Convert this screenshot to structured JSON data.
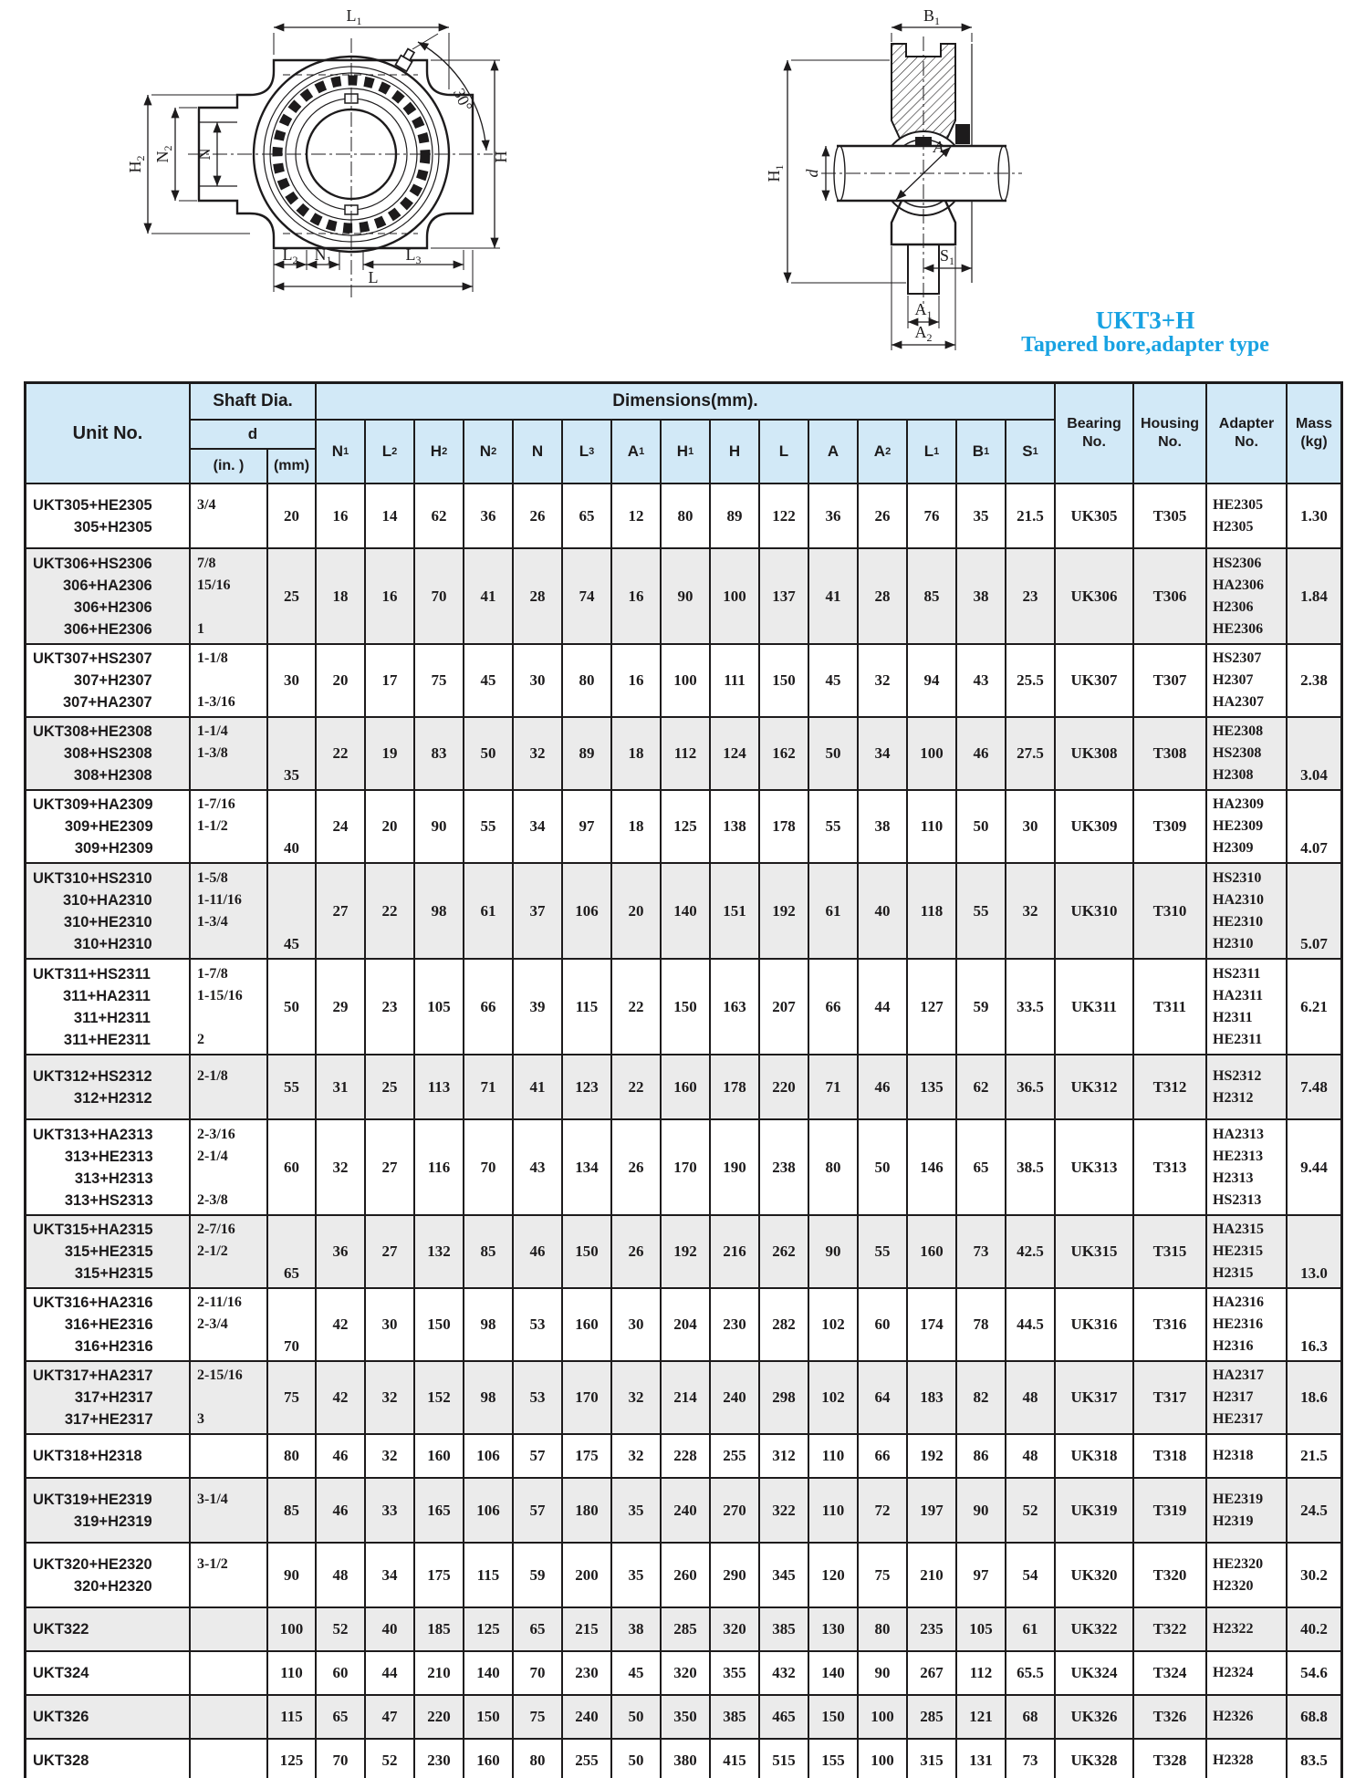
{
  "title": {
    "model": "UKT3+H",
    "subtitle": "Tapered bore,adapter type"
  },
  "colors": {
    "accent_cyan": "#18a2e2",
    "header_bg": "#d2e9f7",
    "row_alt_bg": "#ebebeb",
    "border": "#1d1b1c"
  },
  "diagrams": {
    "left": {
      "labels": [
        {
          "t": "L",
          "s": "1"
        },
        {
          "t": "H",
          "s": "2"
        },
        {
          "t": "N",
          "s": "2"
        },
        {
          "t": "N",
          "s": ""
        },
        {
          "t": "H",
          "s": ""
        },
        {
          "t": "30°",
          "s": ""
        },
        {
          "t": "L",
          "s": "2"
        },
        {
          "t": "N",
          "s": "1"
        },
        {
          "t": "L",
          "s": "3"
        },
        {
          "t": "L",
          "s": ""
        }
      ]
    },
    "right": {
      "labels": [
        {
          "t": "B",
          "s": "1"
        },
        {
          "t": "H",
          "s": "1"
        },
        {
          "t": "d",
          "s": ""
        },
        {
          "t": "A",
          "s": ""
        },
        {
          "t": "S",
          "s": "1"
        },
        {
          "t": "A",
          "s": "1"
        },
        {
          "t": "A",
          "s": "2"
        }
      ]
    }
  },
  "table": {
    "header": {
      "unit_no": "Unit No.",
      "shaft_dia": "Shaft Dia.",
      "d": "d",
      "in_unit": "(in. )",
      "mm_unit": "(mm)",
      "dimensions": "Dimensions(mm).",
      "dim_cols": [
        {
          "t": "N",
          "s": "1"
        },
        {
          "t": "L",
          "s": "2"
        },
        {
          "t": "H",
          "s": "2"
        },
        {
          "t": "N",
          "s": "2"
        },
        {
          "t": "N",
          "s": ""
        },
        {
          "t": "L",
          "s": "3"
        },
        {
          "t": "A",
          "s": "1"
        },
        {
          "t": "H",
          "s": "1"
        },
        {
          "t": "H",
          "s": ""
        },
        {
          "t": "L",
          "s": ""
        },
        {
          "t": "A",
          "s": ""
        },
        {
          "t": "A",
          "s": "2"
        },
        {
          "t": "L",
          "s": "1"
        },
        {
          "t": "B",
          "s": "1"
        },
        {
          "t": "S",
          "s": "1"
        }
      ],
      "bearing": "Bearing",
      "housing": "Housing",
      "adapter": "Adapter",
      "no_label": "No.",
      "mass": "Mass",
      "kg": "(kg)"
    },
    "rows": [
      {
        "unit": [
          "UKT305+HE2305",
          "305+H2305"
        ],
        "in": [
          "3/4",
          ""
        ],
        "mm": "20",
        "dims": [
          "16",
          "14",
          "62",
          "36",
          "26",
          "65",
          "12",
          "80",
          "89",
          "122",
          "36",
          "26",
          "76",
          "35",
          "21.5"
        ],
        "bearing": "UK305",
        "housing": "T305",
        "adapter": [
          "HE2305",
          "H2305"
        ],
        "mass": "1.30"
      },
      {
        "unit": [
          "UKT306+HS2306",
          "306+HA2306",
          "306+H2306",
          "306+HE2306"
        ],
        "in": [
          "7/8",
          "15/16",
          "",
          "1"
        ],
        "mm": "25",
        "dims": [
          "18",
          "16",
          "70",
          "41",
          "28",
          "74",
          "16",
          "90",
          "100",
          "137",
          "41",
          "28",
          "85",
          "38",
          "23"
        ],
        "bearing": "UK306",
        "housing": "T306",
        "adapter": [
          "HS2306",
          "HA2306",
          "H2306",
          "HE2306"
        ],
        "mass": "1.84"
      },
      {
        "unit": [
          "UKT307+HS2307",
          "307+H2307",
          "307+HA2307"
        ],
        "in": [
          "1-1/8",
          "",
          "1-3/16"
        ],
        "mm": "30",
        "dims": [
          "20",
          "17",
          "75",
          "45",
          "30",
          "80",
          "16",
          "100",
          "111",
          "150",
          "45",
          "32",
          "94",
          "43",
          "25.5"
        ],
        "bearing": "UK307",
        "housing": "T307",
        "adapter": [
          "HS2307",
          "H2307",
          "HA2307"
        ],
        "mass": "2.38"
      },
      {
        "unit": [
          "UKT308+HE2308",
          "308+HS2308",
          "308+H2308"
        ],
        "in": [
          "1-1/4",
          "1-3/8",
          ""
        ],
        "mm": "35",
        "va": "b",
        "dims": [
          "22",
          "19",
          "83",
          "50",
          "32",
          "89",
          "18",
          "112",
          "124",
          "162",
          "50",
          "34",
          "100",
          "46",
          "27.5"
        ],
        "bearing": "UK308",
        "housing": "T308",
        "adapter": [
          "HE2308",
          "HS2308",
          "H2308"
        ],
        "mass": "3.04"
      },
      {
        "unit": [
          "UKT309+HA2309",
          "309+HE2309",
          "309+H2309"
        ],
        "in": [
          "1-7/16",
          "1-1/2",
          ""
        ],
        "mm": "40",
        "va": "b",
        "dims": [
          "24",
          "20",
          "90",
          "55",
          "34",
          "97",
          "18",
          "125",
          "138",
          "178",
          "55",
          "38",
          "110",
          "50",
          "30"
        ],
        "bearing": "UK309",
        "housing": "T309",
        "adapter": [
          "HA2309",
          "HE2309",
          "H2309"
        ],
        "mass": "4.07"
      },
      {
        "unit": [
          "UKT310+HS2310",
          "310+HA2310",
          "310+HE2310",
          "310+H2310"
        ],
        "in": [
          "1-5/8",
          "1-11/16",
          "1-3/4",
          ""
        ],
        "mm": "45",
        "va": "b",
        "dims": [
          "27",
          "22",
          "98",
          "61",
          "37",
          "106",
          "20",
          "140",
          "151",
          "192",
          "61",
          "40",
          "118",
          "55",
          "32"
        ],
        "bearing": "UK310",
        "housing": "T310",
        "adapter": [
          "HS2310",
          "HA2310",
          "HE2310",
          "H2310"
        ],
        "mass": "5.07"
      },
      {
        "unit": [
          "UKT311+HS2311",
          "311+HA2311",
          "311+H2311",
          "311+HE2311"
        ],
        "in": [
          "1-7/8",
          "1-15/16",
          "",
          "2"
        ],
        "mm": "50",
        "dims": [
          "29",
          "23",
          "105",
          "66",
          "39",
          "115",
          "22",
          "150",
          "163",
          "207",
          "66",
          "44",
          "127",
          "59",
          "33.5"
        ],
        "bearing": "UK311",
        "housing": "T311",
        "adapter": [
          "HS2311",
          "HA2311",
          "H2311",
          "HE2311"
        ],
        "mass": "6.21"
      },
      {
        "unit": [
          "UKT312+HS2312",
          "312+H2312"
        ],
        "in": [
          "2-1/8",
          ""
        ],
        "mm": "55",
        "dims": [
          "31",
          "25",
          "113",
          "71",
          "41",
          "123",
          "22",
          "160",
          "178",
          "220",
          "71",
          "46",
          "135",
          "62",
          "36.5"
        ],
        "bearing": "UK312",
        "housing": "T312",
        "adapter": [
          "HS2312",
          "H2312"
        ],
        "mass": "7.48"
      },
      {
        "unit": [
          "UKT313+HA2313",
          "313+HE2313",
          "313+H2313",
          "313+HS2313"
        ],
        "in": [
          "2-3/16",
          "2-1/4",
          "",
          "2-3/8"
        ],
        "mm": "60",
        "dims": [
          "32",
          "27",
          "116",
          "70",
          "43",
          "134",
          "26",
          "170",
          "190",
          "238",
          "80",
          "50",
          "146",
          "65",
          "38.5"
        ],
        "bearing": "UK313",
        "housing": "T313",
        "adapter": [
          "HA2313",
          "HE2313",
          "H2313",
          "HS2313"
        ],
        "mass": "9.44"
      },
      {
        "unit": [
          "UKT315+HA2315",
          "315+HE2315",
          "315+H2315"
        ],
        "in": [
          "2-7/16",
          "2-1/2",
          ""
        ],
        "mm": "65",
        "va": "b",
        "dims": [
          "36",
          "27",
          "132",
          "85",
          "46",
          "150",
          "26",
          "192",
          "216",
          "262",
          "90",
          "55",
          "160",
          "73",
          "42.5"
        ],
        "bearing": "UK315",
        "housing": "T315",
        "adapter": [
          "HA2315",
          "HE2315",
          "H2315"
        ],
        "mass": "13.0"
      },
      {
        "unit": [
          "UKT316+HA2316",
          "316+HE2316",
          "316+H2316"
        ],
        "in": [
          "2-11/16",
          "2-3/4",
          ""
        ],
        "mm": "70",
        "va": "b",
        "dims": [
          "42",
          "30",
          "150",
          "98",
          "53",
          "160",
          "30",
          "204",
          "230",
          "282",
          "102",
          "60",
          "174",
          "78",
          "44.5"
        ],
        "bearing": "UK316",
        "housing": "T316",
        "adapter": [
          "HA2316",
          "HE2316",
          "H2316"
        ],
        "mass": "16.3"
      },
      {
        "unit": [
          "UKT317+HA2317",
          "317+H2317",
          "317+HE2317"
        ],
        "in": [
          "2-15/16",
          "",
          "3"
        ],
        "mm": "75",
        "dims": [
          "42",
          "32",
          "152",
          "98",
          "53",
          "170",
          "32",
          "214",
          "240",
          "298",
          "102",
          "64",
          "183",
          "82",
          "48"
        ],
        "bearing": "UK317",
        "housing": "T317",
        "adapter": [
          "HA2317",
          "H2317",
          "HE2317"
        ],
        "mass": "18.6"
      },
      {
        "unit": [
          "UKT318+H2318"
        ],
        "in": [],
        "mm": "80",
        "dims": [
          "46",
          "32",
          "160",
          "106",
          "57",
          "175",
          "32",
          "228",
          "255",
          "312",
          "110",
          "66",
          "192",
          "86",
          "48"
        ],
        "bearing": "UK318",
        "housing": "T318",
        "adapter": [
          "H2318"
        ],
        "mass": "21.5"
      },
      {
        "unit": [
          "UKT319+HE2319",
          "319+H2319"
        ],
        "in": [
          "3-1/4",
          ""
        ],
        "mm": "85",
        "dims": [
          "46",
          "33",
          "165",
          "106",
          "57",
          "180",
          "35",
          "240",
          "270",
          "322",
          "110",
          "72",
          "197",
          "90",
          "52"
        ],
        "bearing": "UK319",
        "housing": "T319",
        "adapter": [
          "HE2319",
          "H2319"
        ],
        "mass": "24.5"
      },
      {
        "unit": [
          "UKT320+HE2320",
          "320+H2320"
        ],
        "in": [
          "3-1/2",
          ""
        ],
        "mm": "90",
        "dims": [
          "48",
          "34",
          "175",
          "115",
          "59",
          "200",
          "35",
          "260",
          "290",
          "345",
          "120",
          "75",
          "210",
          "97",
          "54"
        ],
        "bearing": "UK320",
        "housing": "T320",
        "adapter": [
          "HE2320",
          "H2320"
        ],
        "mass": "30.2"
      },
      {
        "unit": [
          "UKT322"
        ],
        "in": [],
        "mm": "100",
        "dims": [
          "52",
          "40",
          "185",
          "125",
          "65",
          "215",
          "38",
          "285",
          "320",
          "385",
          "130",
          "80",
          "235",
          "105",
          "61"
        ],
        "bearing": "UK322",
        "housing": "T322",
        "adapter": [
          "H2322"
        ],
        "mass": "40.2"
      },
      {
        "unit": [
          "UKT324"
        ],
        "in": [],
        "mm": "110",
        "dims": [
          "60",
          "44",
          "210",
          "140",
          "70",
          "230",
          "45",
          "320",
          "355",
          "432",
          "140",
          "90",
          "267",
          "112",
          "65.5"
        ],
        "bearing": "UK324",
        "housing": "T324",
        "adapter": [
          "H2324"
        ],
        "mass": "54.6"
      },
      {
        "unit": [
          "UKT326"
        ],
        "in": [],
        "mm": "115",
        "dims": [
          "65",
          "47",
          "220",
          "150",
          "75",
          "240",
          "50",
          "350",
          "385",
          "465",
          "150",
          "100",
          "285",
          "121",
          "68"
        ],
        "bearing": "UK326",
        "housing": "T326",
        "adapter": [
          "H2326"
        ],
        "mass": "68.8"
      },
      {
        "unit": [
          "UKT328"
        ],
        "in": [],
        "mm": "125",
        "dims": [
          "70",
          "52",
          "230",
          "160",
          "80",
          "255",
          "50",
          "380",
          "415",
          "515",
          "155",
          "100",
          "315",
          "131",
          "73"
        ],
        "bearing": "UK328",
        "housing": "T328",
        "adapter": [
          "H2328"
        ],
        "mass": "83.5"
      }
    ]
  }
}
